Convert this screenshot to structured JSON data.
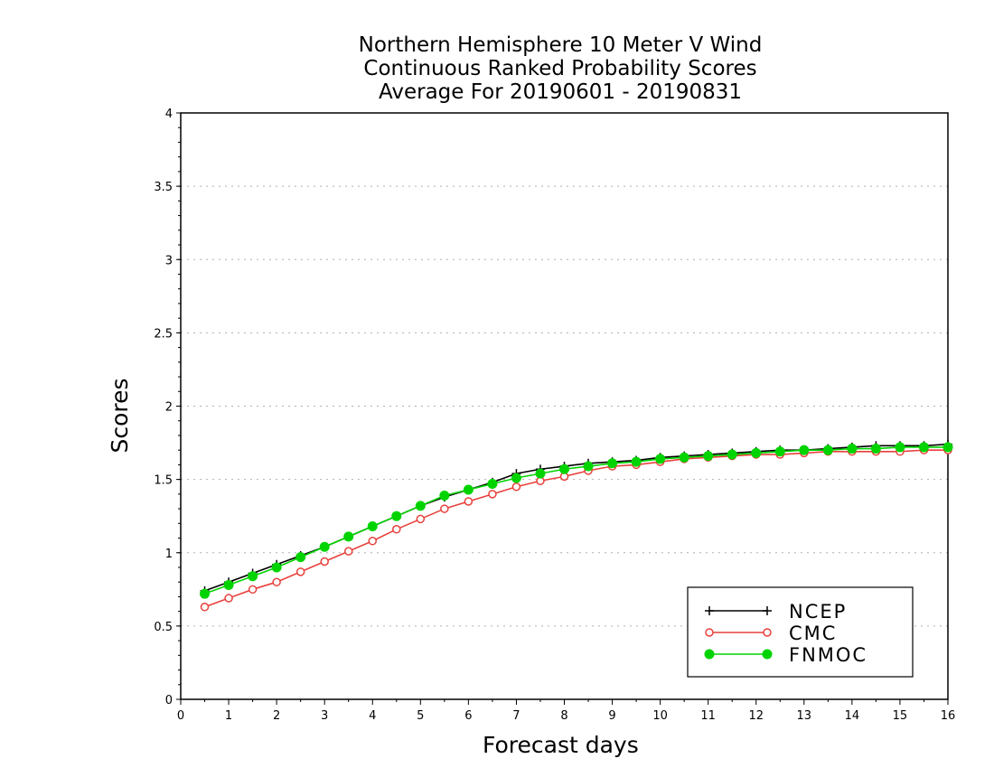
{
  "chart_data": {
    "type": "line",
    "title_lines": [
      "Northern Hemisphere 10 Meter V Wind",
      "Continuous Ranked Probability Scores",
      "Average For 20190601 - 20190831"
    ],
    "xlabel": "Forecast days",
    "ylabel": "Scores",
    "xlim": [
      0,
      16
    ],
    "ylim": [
      0,
      4
    ],
    "x_ticks": [
      "0",
      "1",
      "2",
      "3",
      "4",
      "5",
      "6",
      "7",
      "8",
      "9",
      "10",
      "11",
      "12",
      "13",
      "14",
      "15",
      "16"
    ],
    "y_ticks": [
      "0",
      "0.5",
      "1",
      "1.5",
      "2",
      "2.5",
      "3",
      "3.5",
      "4"
    ],
    "grid": "horizontal dotted",
    "legend_position": "bottom-right",
    "x": [
      0.5,
      1,
      1.5,
      2,
      2.5,
      3,
      3.5,
      4,
      4.5,
      5,
      5.5,
      6,
      6.5,
      7,
      7.5,
      8,
      8.5,
      9,
      9.5,
      10,
      10.5,
      11,
      11.5,
      12,
      12.5,
      13,
      13.5,
      14,
      14.5,
      15,
      15.5,
      16
    ],
    "series": [
      {
        "name": "NCEP",
        "color": "#000000",
        "marker": "plus",
        "values": [
          0.74,
          0.8,
          0.86,
          0.92,
          0.98,
          1.04,
          1.11,
          1.18,
          1.25,
          1.32,
          1.38,
          1.43,
          1.48,
          1.54,
          1.57,
          1.59,
          1.61,
          1.62,
          1.63,
          1.65,
          1.66,
          1.67,
          1.68,
          1.69,
          1.7,
          1.7,
          1.71,
          1.72,
          1.73,
          1.73,
          1.73,
          1.74
        ]
      },
      {
        "name": "CMC",
        "color": "#e8413c",
        "marker": "open-circle",
        "values": [
          0.63,
          0.69,
          0.75,
          0.8,
          0.87,
          0.94,
          1.01,
          1.08,
          1.16,
          1.23,
          1.3,
          1.35,
          1.4,
          1.45,
          1.49,
          1.52,
          1.56,
          1.59,
          1.6,
          1.62,
          1.64,
          1.65,
          1.66,
          1.67,
          1.67,
          1.68,
          1.69,
          1.69,
          1.69,
          1.69,
          1.7,
          1.7
        ]
      },
      {
        "name": "FNMOC",
        "color": "#00d400",
        "marker": "filled-circle",
        "values": [
          0.72,
          0.78,
          0.84,
          0.9,
          0.97,
          1.04,
          1.11,
          1.18,
          1.25,
          1.32,
          1.39,
          1.43,
          1.47,
          1.51,
          1.54,
          1.57,
          1.59,
          1.61,
          1.62,
          1.64,
          1.65,
          1.66,
          1.67,
          1.68,
          1.69,
          1.7,
          1.7,
          1.71,
          1.71,
          1.72,
          1.72,
          1.72
        ]
      }
    ]
  }
}
